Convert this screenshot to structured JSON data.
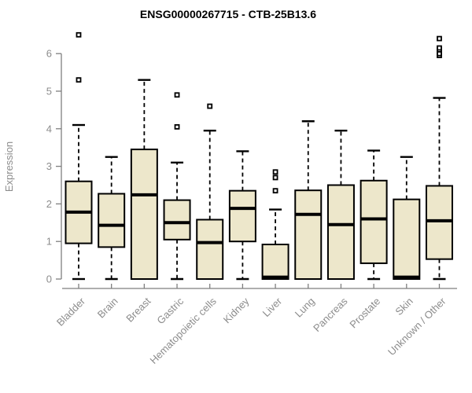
{
  "colors": {
    "background": "#ffffff",
    "box_fill": "#ede7cb",
    "box_border": "#000000",
    "median": "#000000",
    "whisker": "#000000",
    "outlier_border": "#000000",
    "outlier_fill": "#ffffff",
    "axis": "#7f7f7f",
    "tick_label": "#8c8c8c",
    "title": "#000000"
  },
  "chart_data": {
    "type": "boxplot",
    "title": "ENSG00000267715 - CTB-25B13.6",
    "xlabel": "",
    "ylabel": "Expression",
    "ylim": [
      0,
      6.6
    ],
    "yticks": [
      0,
      1,
      2,
      3,
      4,
      5,
      6
    ],
    "grid": false,
    "legend_position": "none",
    "categories": [
      "Bladder",
      "Brain",
      "Breast",
      "Gastric",
      "Hematopoietic cells",
      "Kidney",
      "Liver",
      "Lung",
      "Pancreas",
      "Prostate",
      "Skin",
      "Unknown / Other"
    ],
    "series": [
      {
        "category": "Bladder",
        "whisker_low": 0,
        "q1": 0.95,
        "median": 1.78,
        "q3": 2.6,
        "whisker_high": 4.1,
        "outliers": [
          5.3,
          6.5
        ]
      },
      {
        "category": "Brain",
        "whisker_low": 0,
        "q1": 0.85,
        "median": 1.43,
        "q3": 2.27,
        "whisker_high": 3.25,
        "outliers": []
      },
      {
        "category": "Breast",
        "whisker_low": 0,
        "q1": 0.0,
        "median": 2.24,
        "q3": 3.45,
        "whisker_high": 5.3,
        "outliers": []
      },
      {
        "category": "Gastric",
        "whisker_low": 0,
        "q1": 1.05,
        "median": 1.5,
        "q3": 2.1,
        "whisker_high": 3.1,
        "outliers": [
          4.05,
          4.9
        ]
      },
      {
        "category": "Hematopoietic cells",
        "whisker_low": 0,
        "q1": 0.0,
        "median": 0.97,
        "q3": 1.58,
        "whisker_high": 3.95,
        "outliers": [
          4.6
        ]
      },
      {
        "category": "Kidney",
        "whisker_low": 0,
        "q1": 1.0,
        "median": 1.88,
        "q3": 2.35,
        "whisker_high": 3.4,
        "outliers": []
      },
      {
        "category": "Liver",
        "whisker_low": 0,
        "q1": 0.0,
        "median": 0.05,
        "q3": 0.92,
        "whisker_high": 1.85,
        "outliers": [
          2.35,
          2.7,
          2.85
        ]
      },
      {
        "category": "Lung",
        "whisker_low": 0,
        "q1": 0.0,
        "median": 1.72,
        "q3": 2.36,
        "whisker_high": 4.2,
        "outliers": []
      },
      {
        "category": "Pancreas",
        "whisker_low": 0,
        "q1": 0.0,
        "median": 1.45,
        "q3": 2.5,
        "whisker_high": 3.95,
        "outliers": []
      },
      {
        "category": "Prostate",
        "whisker_low": 0,
        "q1": 0.42,
        "median": 1.6,
        "q3": 2.62,
        "whisker_high": 3.42,
        "outliers": []
      },
      {
        "category": "Skin",
        "whisker_low": 0,
        "q1": 0.0,
        "median": 0.05,
        "q3": 2.12,
        "whisker_high": 3.25,
        "outliers": []
      },
      {
        "category": "Unknown / Other",
        "whisker_low": 0,
        "q1": 0.53,
        "median": 1.55,
        "q3": 2.48,
        "whisker_high": 4.82,
        "outliers": [
          5.95,
          6.0,
          6.1,
          6.15,
          6.4
        ]
      }
    ]
  }
}
